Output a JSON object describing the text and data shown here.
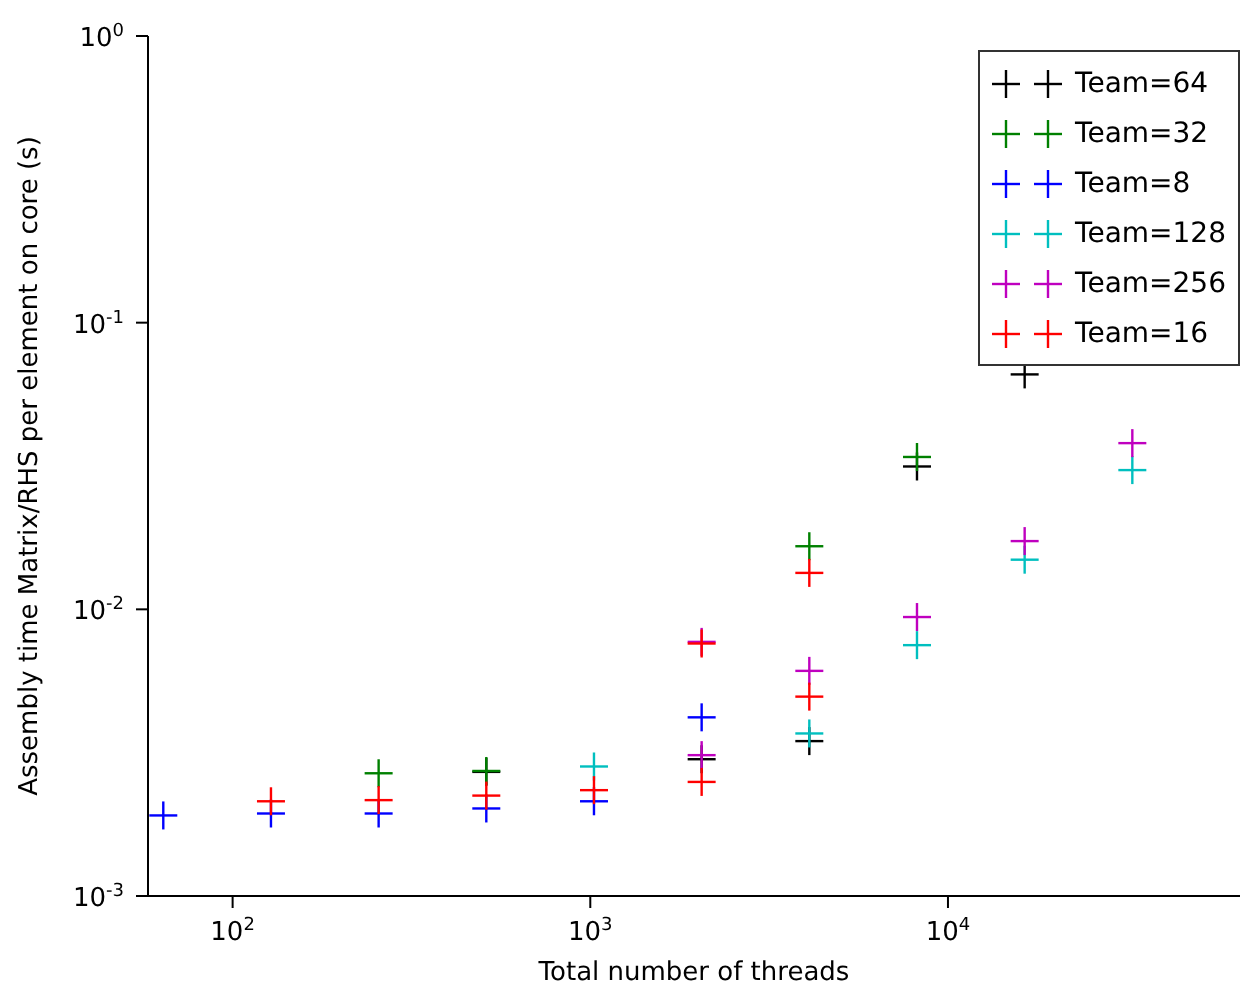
{
  "chart_data": {
    "type": "scatter",
    "xlabel": "Total number of threads",
    "ylabel": "Assembly time Matrix/RHS per element on core (s)",
    "log": "xy",
    "marker": "cross",
    "legend": "top right",
    "xlim": [
      58,
      65536
    ],
    "xticks": [
      {
        "value": 100,
        "label": "10$^{2}$"
      },
      {
        "value": 1000,
        "label": "10$^{3}$"
      },
      {
        "value": 10000,
        "label": "10$^{4}$"
      }
    ],
    "ylim": [
      0.001,
      1
    ],
    "yticks": [
      {
        "value": 0.001,
        "label": "10$^{-3}$"
      },
      {
        "value": 0.01,
        "label": "10$^{-2}$"
      },
      {
        "value": 0.1,
        "label": "10$^{-1}$"
      },
      {
        "value": 1,
        "label": "10$^{0}$"
      }
    ],
    "series": [
      {
        "name": "Team=64",
        "color": "#000000",
        "x": [
          512,
          2048,
          4096,
          8192,
          16384
        ],
        "values": [
          0.00271,
          0.003,
          0.00347,
          0.0315,
          0.066
        ]
      },
      {
        "name": "Team=32",
        "color": "#008000",
        "x": [
          256,
          512,
          4096,
          8192
        ],
        "values": [
          0.00268,
          0.00273,
          0.0166,
          0.034
        ]
      },
      {
        "name": "Team=8",
        "color": "#0000ff",
        "x": [
          64,
          128,
          256,
          512,
          1024,
          2048
        ],
        "values": [
          0.00191,
          0.00194,
          0.00194,
          0.00202,
          0.00214,
          0.0042
        ]
      },
      {
        "name": "Team=128",
        "color": "#00bfbf",
        "x": [
          1024,
          4096,
          8192,
          16384,
          32768
        ],
        "values": [
          0.00283,
          0.00369,
          0.0075,
          0.0149,
          0.0306
        ]
      },
      {
        "name": "Team=256",
        "color": "#bf00bf",
        "x": [
          2048,
          2048,
          4096,
          8192,
          16384,
          32768
        ],
        "values": [
          0.0077,
          0.0031,
          0.0061,
          0.0094,
          0.0173,
          0.038
        ]
      },
      {
        "name": "Team=16",
        "color": "#ff0000",
        "x": [
          128,
          256,
          512,
          1024,
          2048,
          2048,
          4096,
          4096
        ],
        "values": [
          0.00214,
          0.00216,
          0.00224,
          0.00234,
          0.0076,
          0.0025,
          0.0134,
          0.00496
        ]
      }
    ]
  }
}
